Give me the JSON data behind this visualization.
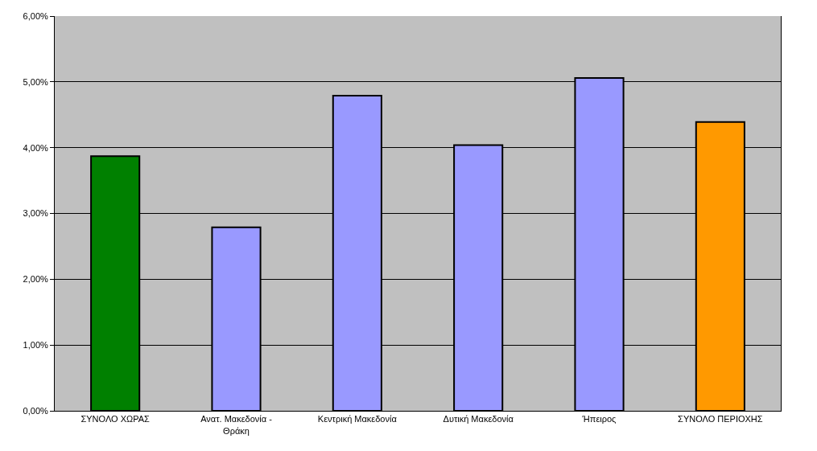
{
  "chart_data": {
    "type": "bar",
    "categories": [
      "ΣΥΝΟΛΟ ΧΩΡΑΣ",
      "Ανατ. Μακεδονία - Θράκη",
      "Κεντρική Μακεδονία",
      "Δυτική Μακεδονία",
      "Ήπειρος",
      "ΣΥΝΟΛΟ ΠΕΡΙΟΧΗΣ"
    ],
    "values": [
      3.87,
      2.79,
      4.79,
      4.04,
      5.06,
      4.39
    ],
    "colors": [
      "#008000",
      "#9999ff",
      "#9999ff",
      "#9999ff",
      "#9999ff",
      "#ff9900"
    ],
    "ylim": [
      0,
      6
    ],
    "yticks": [
      {
        "value": 0,
        "label": "0,00%"
      },
      {
        "value": 1,
        "label": "1,00%"
      },
      {
        "value": 2,
        "label": "2,00%"
      },
      {
        "value": 3,
        "label": "3,00%"
      },
      {
        "value": 4,
        "label": "4,00%"
      },
      {
        "value": 5,
        "label": "5,00%"
      },
      {
        "value": 6,
        "label": "6,00%"
      }
    ],
    "grid": "y",
    "legend": false
  }
}
